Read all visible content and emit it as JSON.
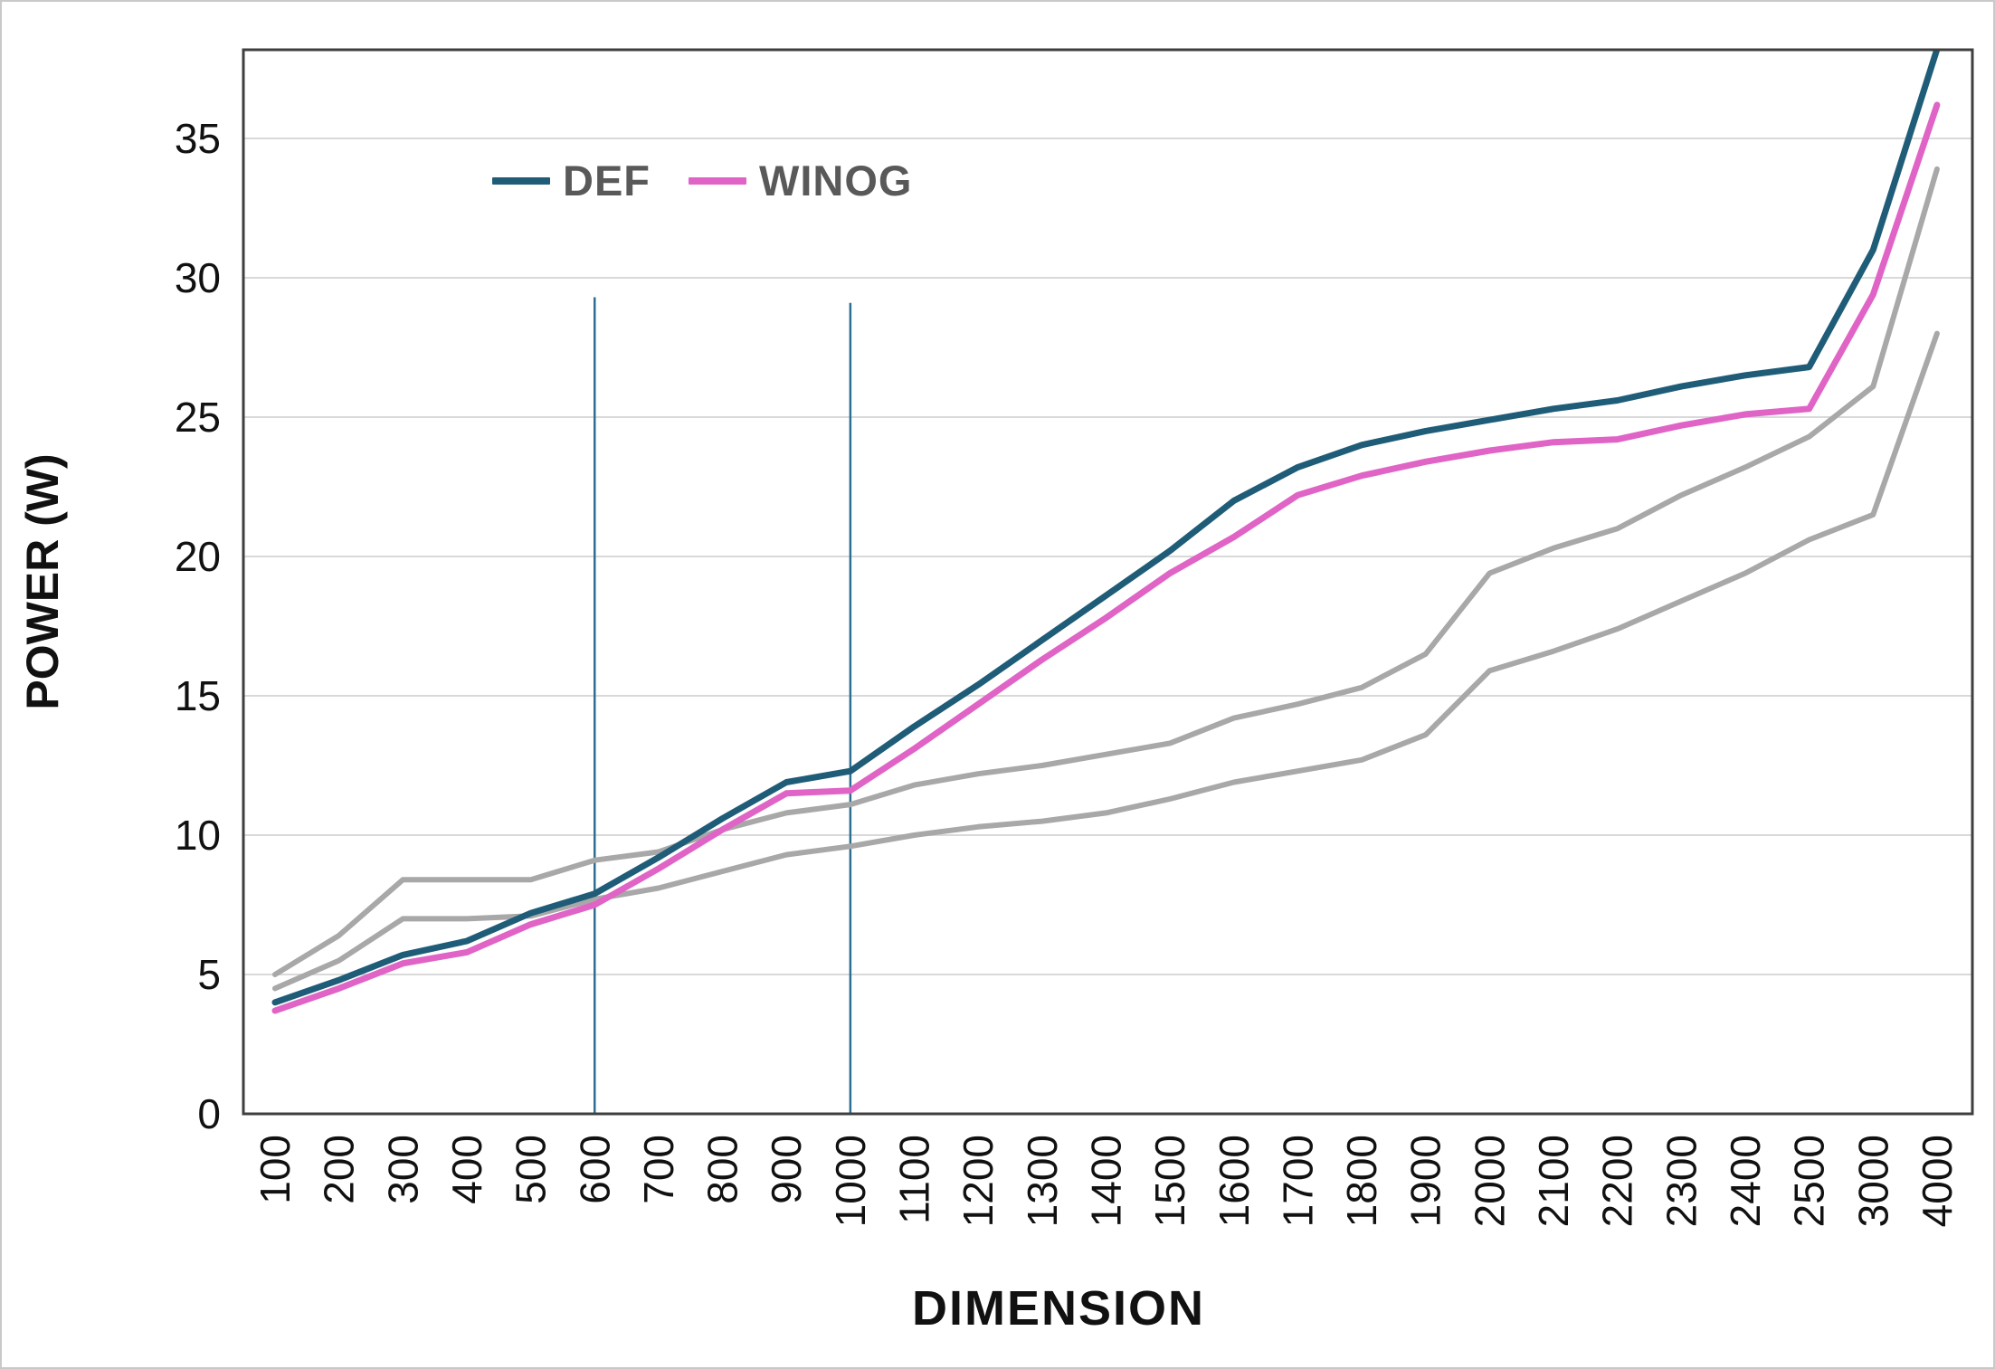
{
  "figure": {
    "background": "#ffffff",
    "outer_border_color": "#c9c9c9",
    "plot_border_color": "#3f3f3f",
    "grid_color": "#d9d9d9",
    "tick_label_color": "#111111"
  },
  "legend": {
    "items": [
      {
        "label": "DEF",
        "color": "#1f5c78"
      },
      {
        "label": "WINOG",
        "color": "#e063c6"
      }
    ]
  },
  "axes": {
    "x_title": "DIMENSION",
    "y_title": "POWER (W)",
    "y_tick_labels": [
      "0",
      "5",
      "10",
      "15",
      "20",
      "25",
      "30",
      "35"
    ]
  },
  "chart_data": {
    "type": "line",
    "title": "",
    "xlabel": "DIMENSION",
    "ylabel": "POWER (W)",
    "categories": [
      100,
      200,
      300,
      400,
      500,
      600,
      700,
      800,
      900,
      1000,
      1100,
      1200,
      1300,
      1400,
      1500,
      1600,
      1700,
      1800,
      1900,
      2000,
      2100,
      2200,
      2300,
      2400,
      2500,
      3000,
      4000
    ],
    "series": [
      {
        "name": "DEF",
        "color": "#1f5c78",
        "stroke_width": 7,
        "in_legend": true,
        "values": [
          4.0,
          4.8,
          5.7,
          6.2,
          7.2,
          7.9,
          9.2,
          10.6,
          11.9,
          12.3,
          13.9,
          15.4,
          17.0,
          18.6,
          20.2,
          22.0,
          23.2,
          24.0,
          24.5,
          24.9,
          25.3,
          25.6,
          26.1,
          26.5,
          26.8,
          31.0,
          38.2
        ]
      },
      {
        "name": "WINOG",
        "color": "#e063c6",
        "stroke_width": 7,
        "in_legend": true,
        "values": [
          3.7,
          4.5,
          5.4,
          5.8,
          6.8,
          7.5,
          8.8,
          10.2,
          11.5,
          11.6,
          13.1,
          14.7,
          16.3,
          17.8,
          19.4,
          20.7,
          22.2,
          22.9,
          23.4,
          23.8,
          24.1,
          24.2,
          24.7,
          25.1,
          25.3,
          29.4,
          36.2
        ]
      },
      {
        "name": "unlabeled-gray-upper",
        "color": "#a8a8a8",
        "stroke_width": 6,
        "in_legend": false,
        "values": [
          5.0,
          6.4,
          8.4,
          8.4,
          8.4,
          9.1,
          9.4,
          10.2,
          10.8,
          11.1,
          11.8,
          12.2,
          12.5,
          12.9,
          13.3,
          14.2,
          14.7,
          15.3,
          16.5,
          19.4,
          20.3,
          21.0,
          22.2,
          23.2,
          24.3,
          26.1,
          33.9
        ]
      },
      {
        "name": "unlabeled-gray-lower",
        "color": "#a8a8a8",
        "stroke_width": 6,
        "in_legend": false,
        "values": [
          4.5,
          5.5,
          7.0,
          7.0,
          7.1,
          7.7,
          8.1,
          8.7,
          9.3,
          9.6,
          10.0,
          10.3,
          10.5,
          10.8,
          11.3,
          11.9,
          12.3,
          12.7,
          13.6,
          15.9,
          16.6,
          17.4,
          18.4,
          19.4,
          20.6,
          21.5,
          28.0
        ]
      }
    ],
    "ylim": [
      0,
      38.2
    ],
    "y_tick_step": 5,
    "grid": "horizontal",
    "legend_position": "top-left-inside",
    "annotations": {
      "vertical_lines": [
        {
          "x": 600,
          "y_top": 29.3,
          "color": "#2e6f8f"
        },
        {
          "x": 1000,
          "y_top": 29.1,
          "color": "#2e6f8f"
        }
      ]
    }
  }
}
